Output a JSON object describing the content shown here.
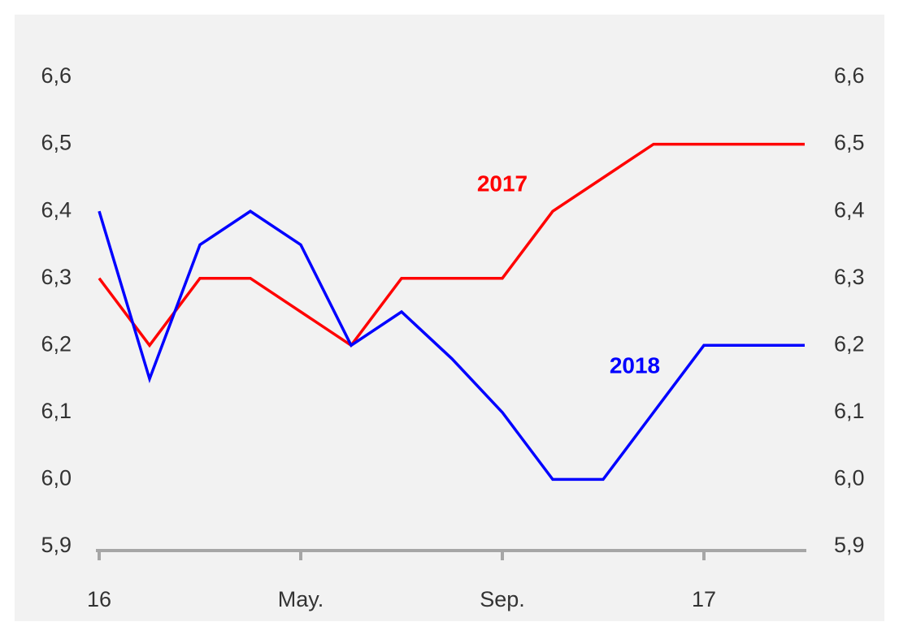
{
  "chart_data": {
    "type": "line",
    "categories": [
      "16",
      null,
      null,
      null,
      "May.",
      null,
      null,
      null,
      "Sep.",
      null,
      null,
      null,
      "17",
      null,
      null
    ],
    "series": [
      {
        "name": "2017",
        "color": "#ff0000",
        "values": [
          6.3,
          6.2,
          6.3,
          6.3,
          6.25,
          6.2,
          6.3,
          6.3,
          6.3,
          6.4,
          6.45,
          6.5,
          6.5,
          6.5,
          6.5
        ]
      },
      {
        "name": "2018",
        "color": "#0000ff",
        "values": [
          6.4,
          6.15,
          6.35,
          6.4,
          6.35,
          6.2,
          6.25,
          6.18,
          6.1,
          6.0,
          6.0,
          6.1,
          6.2,
          6.2,
          6.2
        ]
      }
    ],
    "ylim": [
      5.9,
      6.6
    ],
    "yticks": [
      {
        "value": 5.9,
        "label": "5,9"
      },
      {
        "value": 6.0,
        "label": "6,0"
      },
      {
        "value": 6.1,
        "label": "6,1"
      },
      {
        "value": 6.2,
        "label": "6,2"
      },
      {
        "value": 6.3,
        "label": "6,3"
      },
      {
        "value": 6.4,
        "label": "6,4"
      },
      {
        "value": 6.5,
        "label": "6,5"
      },
      {
        "value": 6.6,
        "label": "6,6"
      }
    ],
    "y2lim": [
      5.9,
      6.6
    ],
    "y2ticks": [
      {
        "value": 5.9,
        "label": "5,9"
      },
      {
        "value": 6.0,
        "label": "6,0"
      },
      {
        "value": 6.1,
        "label": "6,1"
      },
      {
        "value": 6.2,
        "label": "6,2"
      },
      {
        "value": 6.3,
        "label": "6,3"
      },
      {
        "value": 6.4,
        "label": "6,4"
      },
      {
        "value": 6.5,
        "label": "6,5"
      },
      {
        "value": 6.6,
        "label": "6,6"
      }
    ],
    "grid": false
  }
}
